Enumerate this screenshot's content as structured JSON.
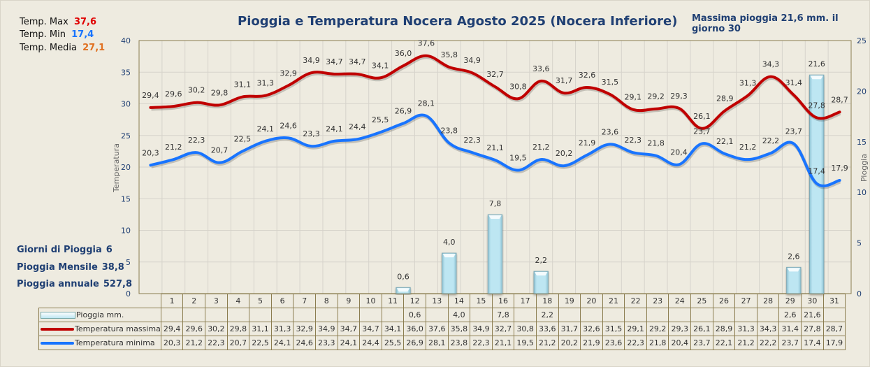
{
  "stats": {
    "temp_max_label": "Temp. Max",
    "temp_max_value": "37,6",
    "temp_min_label": "Temp.  Min",
    "temp_min_value": "17,4",
    "temp_media_label": "Temp. Media",
    "temp_media_value": "27,1",
    "max_rain_text": "Massima pioggia   21,6 mm. il giorno 30",
    "rain_days_label": "Giorni di Pioggia",
    "rain_days_value": "6",
    "rain_month_label": "Pioggia Mensile",
    "rain_month_value": "38,8",
    "rain_year_label": "Pioggia annuale",
    "rain_year_value": "527,8"
  },
  "colors": {
    "max": "#C00000",
    "min": "#1874FF",
    "media": "#E07020",
    "max_text": "#E00000",
    "rain_bar": "#BDE6F2",
    "title": "#1F3F73"
  },
  "chart_data": {
    "type": "line+bar",
    "title": "Pioggia e Temperatura Nocera Agosto 2025 (Nocera Inferiore)",
    "xlabel": "",
    "ylabel": "Temperatura",
    "y2label": "Pioggia",
    "ylim": [
      0,
      40
    ],
    "y2lim": [
      0,
      25
    ],
    "yticks": [
      0,
      5,
      10,
      15,
      20,
      25,
      30,
      35,
      40
    ],
    "y2ticks": [
      0,
      5,
      10,
      15,
      20,
      25
    ],
    "grid": true,
    "legend": "bottom-table",
    "categories": [
      "1",
      "2",
      "3",
      "4",
      "5",
      "6",
      "7",
      "8",
      "9",
      "10",
      "11",
      "12",
      "13",
      "14",
      "15",
      "16",
      "17",
      "18",
      "19",
      "20",
      "21",
      "22",
      "23",
      "24",
      "25",
      "26",
      "27",
      "28",
      "29",
      "30",
      "31"
    ],
    "series": [
      {
        "name": "Pioggia mm.",
        "type": "bar",
        "axis": "right",
        "values": [
          null,
          null,
          null,
          null,
          null,
          null,
          null,
          null,
          null,
          null,
          null,
          0.6,
          null,
          4.0,
          null,
          7.8,
          null,
          2.2,
          null,
          null,
          null,
          null,
          null,
          null,
          null,
          null,
          null,
          null,
          2.6,
          21.6,
          null
        ],
        "labels": [
          "",
          "",
          "",
          "",
          "",
          "",
          "",
          "",
          "",
          "",
          "",
          "0,6",
          "",
          "4,0",
          "",
          "7,8",
          "",
          "2,2",
          "",
          "",
          "",
          "",
          "",
          "",
          "",
          "",
          "",
          "",
          "2,6",
          "21,6",
          ""
        ]
      },
      {
        "name": "Temperatura massima",
        "type": "line",
        "axis": "left",
        "values": [
          29.4,
          29.6,
          30.2,
          29.8,
          31.1,
          31.3,
          32.9,
          34.9,
          34.7,
          34.7,
          34.1,
          36.0,
          37.6,
          35.8,
          34.9,
          32.7,
          30.8,
          33.6,
          31.7,
          32.6,
          31.5,
          29.1,
          29.2,
          29.3,
          26.1,
          28.9,
          31.3,
          34.3,
          31.4,
          27.8,
          28.7
        ],
        "labels": [
          "29,4",
          "29,6",
          "30,2",
          "29,8",
          "31,1",
          "31,3",
          "32,9",
          "34,9",
          "34,7",
          "34,7",
          "34,1",
          "36,0",
          "37,6",
          "35,8",
          "34,9",
          "32,7",
          "30,8",
          "33,6",
          "31,7",
          "32,6",
          "31,5",
          "29,1",
          "29,2",
          "29,3",
          "26,1",
          "28,9",
          "31,3",
          "34,3",
          "31,4",
          "27,8",
          "28,7"
        ]
      },
      {
        "name": "Temperatura minima",
        "type": "line",
        "axis": "left",
        "values": [
          20.3,
          21.2,
          22.3,
          20.7,
          22.5,
          24.1,
          24.6,
          23.3,
          24.1,
          24.4,
          25.5,
          26.9,
          28.1,
          23.8,
          22.3,
          21.1,
          19.5,
          21.2,
          20.2,
          21.9,
          23.6,
          22.3,
          21.8,
          20.4,
          23.7,
          22.1,
          21.2,
          22.2,
          23.7,
          17.4,
          17.9
        ],
        "labels": [
          "20,3",
          "21,2",
          "22,3",
          "20,7",
          "22,5",
          "24,1",
          "24,6",
          "23,3",
          "24,1",
          "24,4",
          "25,5",
          "26,9",
          "28,1",
          "23,8",
          "22,3",
          "21,1",
          "19,5",
          "21,2",
          "20,2",
          "21,9",
          "23,6",
          "22,3",
          "21,8",
          "20,4",
          "23,7",
          "22,1",
          "21,2",
          "22,2",
          "23,7",
          "17,4",
          "17,9"
        ]
      }
    ]
  }
}
